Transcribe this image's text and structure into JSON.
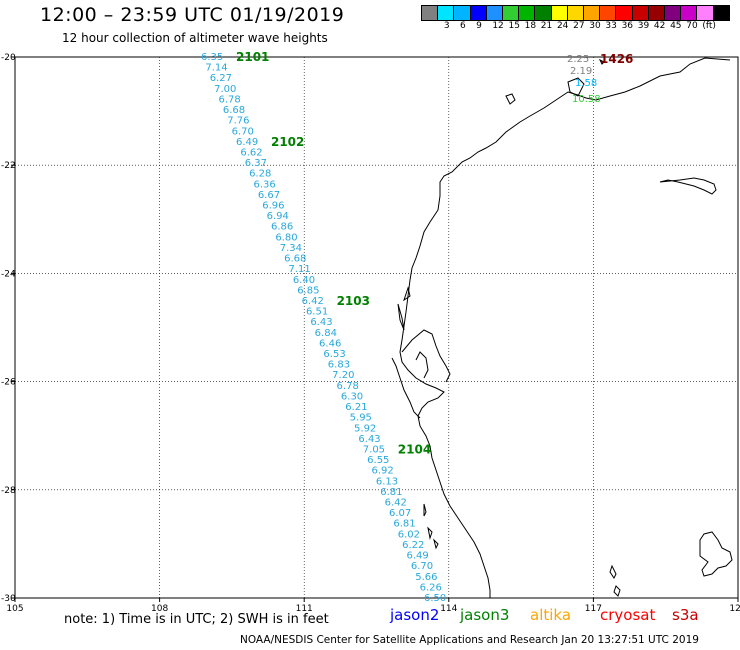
{
  "header": {
    "title": "12:00 – 23:59 UTC 01/19/2019",
    "subtitle": "12 hour collection of altimeter wave heights"
  },
  "colorbar": {
    "colors": [
      "#808080",
      "#00e5ff",
      "#00b4ff",
      "#0000ff",
      "#1e90ff",
      "#32cd32",
      "#00b400",
      "#008000",
      "#ffff00",
      "#ffd700",
      "#ffa500",
      "#ff4500",
      "#ff0000",
      "#c80000",
      "#960000",
      "#800080",
      "#c800c8",
      "#ff80ff",
      "#000000"
    ],
    "ticks": [
      "3",
      "6",
      "9",
      "12",
      "15",
      "18",
      "21",
      "24",
      "27",
      "30",
      "33",
      "36",
      "39",
      "42",
      "45",
      "70",
      "(ft)"
    ]
  },
  "map": {
    "lon_ticks": [
      "105",
      "108",
      "111",
      "114",
      "117",
      "120"
    ],
    "lat_ticks": [
      "-20",
      "-22",
      "-24",
      "-26",
      "-28",
      "-30"
    ],
    "lon_range": [
      105,
      120
    ],
    "lat_range": [
      -20,
      -30
    ]
  },
  "track_main": {
    "color": "#29a8dc",
    "swh_ft": [
      "6.35",
      "7.14",
      "6.27",
      "7.00",
      "6.78",
      "6.68",
      "7.76",
      "6.70",
      "6.49",
      "6.62",
      "6.37",
      "6.28",
      "6.36",
      "6.67",
      "6.96",
      "6.94",
      "6.86",
      "6.80",
      "7.34",
      "6.68",
      "7.11",
      "6.40",
      "6.85",
      "6.42",
      "6.51",
      "6.43",
      "6.84",
      "6.46",
      "6.53",
      "6.83",
      "7.20",
      "6.78",
      "6.30",
      "6.21",
      "5.95",
      "5.92",
      "6.43",
      "7.05",
      "6.55",
      "6.92",
      "6.13",
      "6.81",
      "6.42",
      "6.07",
      "6.81",
      "6.02",
      "6.22",
      "6.49",
      "6.70",
      "5.66",
      "6.26",
      "6.50"
    ],
    "times": [
      "2101",
      "2102",
      "2103",
      "2104"
    ],
    "time_color": "#008000"
  },
  "track_coast": {
    "swh_ft": [
      "2.25",
      "2.19",
      "1.58",
      "10.58"
    ],
    "swh_colors": [
      "#808080",
      "#808080",
      "#00b4ff",
      "#32cd32"
    ],
    "time": "1426",
    "time_color": "#800000"
  },
  "footer": {
    "note": "note: 1) Time is in UTC; 2) SWH is in feet",
    "legend": [
      {
        "label": "jason2",
        "color": "#0000ff"
      },
      {
        "label": "jason3",
        "color": "#008000"
      },
      {
        "label": "altika",
        "color": "#ffa500"
      },
      {
        "label": "cryosat",
        "color": "#ff0000"
      },
      {
        "label": "s3a",
        "color": "#c80000"
      }
    ],
    "credit": "NOAA/NESDIS Center for Satellite Applications and Research   Jan 20 13:27:51 UTC 2019"
  }
}
